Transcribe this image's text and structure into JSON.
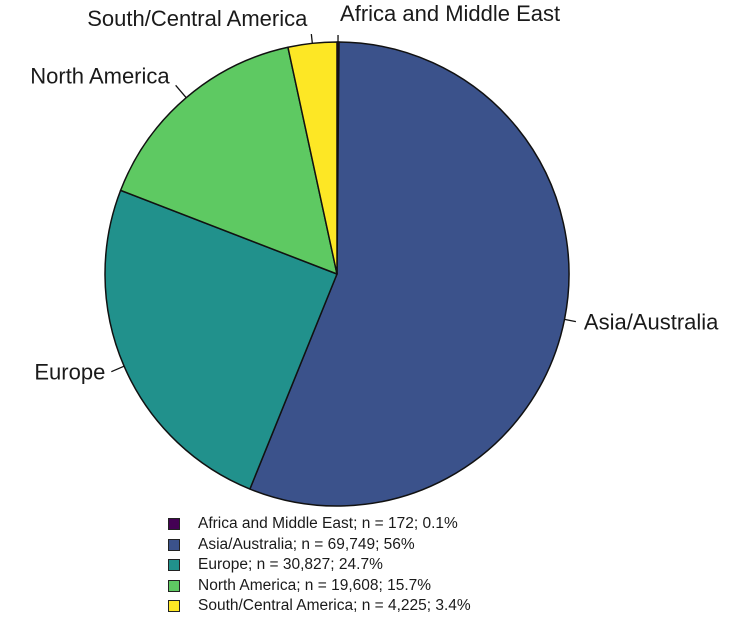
{
  "chart_data": {
    "type": "pie",
    "title": "",
    "slices": [
      {
        "label": "Africa and Middle East",
        "n": 172,
        "n_text": "172",
        "percent": 0.1,
        "percent_text": "0.1%",
        "color": "#440154"
      },
      {
        "label": "Asia/Australia",
        "n": 69749,
        "n_text": "69,749",
        "percent": 56,
        "percent_text": "56%",
        "color": "#3B528B"
      },
      {
        "label": "Europe",
        "n": 30827,
        "n_text": "30,827",
        "percent": 24.7,
        "percent_text": "24.7%",
        "color": "#21918C"
      },
      {
        "label": "North America",
        "n": 19608,
        "n_text": "19,608",
        "percent": 15.7,
        "percent_text": "15.7%",
        "color": "#5EC962"
      },
      {
        "label": "South/Central America",
        "n": 4225,
        "n_text": "4,225",
        "percent": 3.4,
        "percent_text": "3.4%",
        "color": "#FDE725"
      }
    ],
    "legend": {
      "position": "bottom",
      "entries": [
        "Africa and Middle East; n = 172; 0.1%",
        "Asia/Australia; n = 69,749; 56%",
        "Europe; n = 30,827; 24.7%",
        "North America; n = 19,608; 15.7%",
        "South/Central America; n = 4,225; 3.4%"
      ]
    }
  }
}
